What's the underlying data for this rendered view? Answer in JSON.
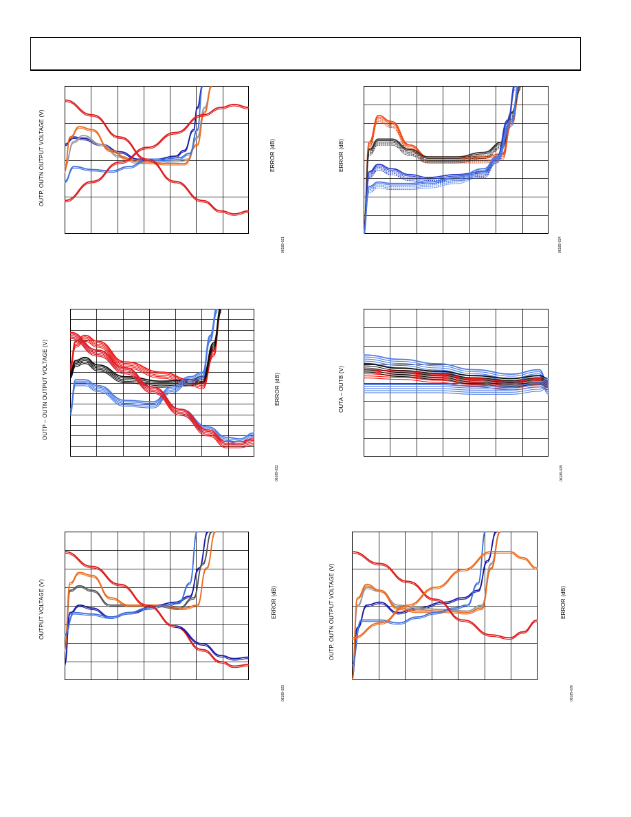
{
  "header": {
    "title": ""
  },
  "chart_data": [
    {
      "id": "021",
      "type": "line",
      "ylabel_left": "OUTP, OUTN OUTPUT VOLTAGE (V)",
      "ylabel_right": "ERROR (dB)",
      "figure_code": "06189-021",
      "grid": true,
      "grid_cols": 7,
      "grid_rows": 4,
      "series": [
        {
          "color": "#1a1aa6",
          "x": [
            0,
            0.05,
            0.1,
            0.2,
            0.3,
            0.4,
            0.5,
            0.6,
            0.65,
            0.7,
            0.72,
            0.75
          ],
          "y": [
            0.6,
            0.65,
            0.64,
            0.6,
            0.55,
            0.5,
            0.5,
            0.52,
            0.56,
            0.7,
            0.85,
            1.0
          ]
        },
        {
          "color": "#9a9a9a",
          "x": [
            0,
            0.05,
            0.1,
            0.2,
            0.3,
            0.4,
            0.5,
            0.6,
            0.67,
            0.72,
            0.76,
            0.8
          ],
          "y": [
            0.45,
            0.62,
            0.66,
            0.6,
            0.52,
            0.48,
            0.48,
            0.49,
            0.5,
            0.65,
            0.85,
            1.0
          ]
        },
        {
          "color": "#ee6a1c",
          "x": [
            0,
            0.03,
            0.08,
            0.15,
            0.25,
            0.35,
            0.45,
            0.55,
            0.65,
            0.72,
            0.76,
            0.8
          ],
          "y": [
            0.42,
            0.65,
            0.72,
            0.7,
            0.56,
            0.5,
            0.48,
            0.47,
            0.47,
            0.6,
            0.82,
            1.0
          ]
        },
        {
          "color": "#3d72dc",
          "x": [
            0,
            0.05,
            0.15,
            0.25,
            0.35,
            0.45,
            0.55,
            0.62,
            0.68,
            0.72,
            0.75
          ],
          "y": [
            0.35,
            0.45,
            0.43,
            0.42,
            0.45,
            0.5,
            0.5,
            0.51,
            0.54,
            0.7,
            1.0
          ]
        },
        {
          "color": "#dd1a1a",
          "x": [
            0,
            0.15,
            0.3,
            0.45,
            0.6,
            0.75,
            0.85,
            0.92,
            1.0
          ],
          "y": [
            0.9,
            0.8,
            0.65,
            0.5,
            0.35,
            0.22,
            0.15,
            0.13,
            0.15
          ]
        },
        {
          "color": "#dd1a1a",
          "x": [
            0,
            0.15,
            0.3,
            0.45,
            0.6,
            0.75,
            0.85,
            0.92,
            1.0
          ],
          "y": [
            0.22,
            0.35,
            0.48,
            0.58,
            0.68,
            0.8,
            0.85,
            0.87,
            0.85
          ]
        }
      ]
    },
    {
      "id": "024",
      "type": "line",
      "ylabel_left": "",
      "ylabel_right": "ERROR (dB)",
      "figure_code": "06189-024",
      "grid": true,
      "grid_cols": 7,
      "grid_rows": 8,
      "series": [
        {
          "color": "#ee4a14",
          "x": [
            0,
            0.03,
            0.08,
            0.15,
            0.25,
            0.35,
            0.5,
            0.65,
            0.75,
            0.8,
            0.85
          ],
          "y": [
            0.0,
            0.6,
            0.78,
            0.74,
            0.58,
            0.5,
            0.5,
            0.5,
            0.52,
            0.75,
            1.0
          ]
        },
        {
          "color": "#333333",
          "x": [
            0,
            0.03,
            0.08,
            0.15,
            0.25,
            0.35,
            0.5,
            0.65,
            0.75,
            0.8,
            0.85
          ],
          "y": [
            0.0,
            0.55,
            0.62,
            0.62,
            0.55,
            0.5,
            0.5,
            0.53,
            0.6,
            0.8,
            1.0
          ]
        },
        {
          "color": "#2a3ec8",
          "x": [
            0,
            0.03,
            0.08,
            0.15,
            0.25,
            0.35,
            0.5,
            0.65,
            0.72,
            0.78,
            0.82
          ],
          "y": [
            0.0,
            0.4,
            0.45,
            0.42,
            0.38,
            0.36,
            0.38,
            0.4,
            0.5,
            0.75,
            1.0
          ]
        },
        {
          "color": "#4a7ae4",
          "x": [
            0,
            0.03,
            0.08,
            0.15,
            0.25,
            0.35,
            0.5,
            0.65,
            0.72,
            0.8,
            0.84
          ],
          "y": [
            0.0,
            0.3,
            0.33,
            0.32,
            0.32,
            0.33,
            0.36,
            0.42,
            0.5,
            0.75,
            1.0
          ]
        }
      ]
    },
    {
      "id": "022",
      "type": "line",
      "ylabel_left": "OUTP – OUTN OUTPUT VOLTAGE (V)",
      "ylabel_right": "ERROR (dB)",
      "figure_code": "06189-022",
      "grid": true,
      "grid_cols": 7,
      "grid_rows": 14,
      "series": [
        {
          "color": "#ee1a1a",
          "x": [
            0,
            0.03,
            0.08,
            0.15,
            0.3,
            0.5,
            0.65,
            0.72,
            0.78,
            0.82
          ],
          "y": [
            0.6,
            0.76,
            0.8,
            0.76,
            0.62,
            0.55,
            0.5,
            0.48,
            0.7,
            1.0
          ]
        },
        {
          "color": "#111111",
          "x": [
            0,
            0.03,
            0.08,
            0.15,
            0.3,
            0.5,
            0.65,
            0.72,
            0.78,
            0.82
          ],
          "y": [
            0.55,
            0.63,
            0.65,
            0.6,
            0.52,
            0.49,
            0.5,
            0.52,
            0.75,
            1.0
          ]
        },
        {
          "color": "#4a7ae4",
          "x": [
            0,
            0.03,
            0.08,
            0.15,
            0.3,
            0.45,
            0.55,
            0.65,
            0.72,
            0.76,
            0.8
          ],
          "y": [
            0.3,
            0.5,
            0.5,
            0.46,
            0.36,
            0.35,
            0.45,
            0.52,
            0.55,
            0.8,
            1.0
          ]
        },
        {
          "color": "#4a7ae4",
          "x": [
            0,
            0.15,
            0.3,
            0.45,
            0.6,
            0.75,
            0.85,
            0.92,
            1.0
          ],
          "y": [
            0.82,
            0.7,
            0.58,
            0.45,
            0.3,
            0.18,
            0.11,
            0.1,
            0.14
          ]
        },
        {
          "color": "#ee1a1a",
          "x": [
            0,
            0.15,
            0.3,
            0.45,
            0.6,
            0.75,
            0.85,
            0.92,
            1.0
          ],
          "y": [
            0.82,
            0.7,
            0.58,
            0.45,
            0.3,
            0.16,
            0.08,
            0.08,
            0.1
          ]
        }
      ]
    },
    {
      "id": "025",
      "type": "line",
      "ylabel_left": "OUTA – OUTB (V)",
      "ylabel_right": "",
      "figure_code": "06189-025",
      "grid": true,
      "grid_cols": 7,
      "grid_rows": 8,
      "series": [
        {
          "color": "#4a7ae4",
          "x": [
            0,
            0.2,
            0.4,
            0.6,
            0.8,
            0.95,
            1.0
          ],
          "y": [
            0.66,
            0.63,
            0.6,
            0.56,
            0.53,
            0.56,
            0.45
          ]
        },
        {
          "color": "#ee1a1a",
          "x": [
            0,
            0.2,
            0.4,
            0.6,
            0.8,
            0.95,
            1.0
          ],
          "y": [
            0.56,
            0.55,
            0.53,
            0.5,
            0.48,
            0.5,
            0.48
          ]
        },
        {
          "color": "#111111",
          "x": [
            0,
            0.2,
            0.4,
            0.6,
            0.8,
            0.95,
            1.0
          ],
          "y": [
            0.6,
            0.57,
            0.55,
            0.52,
            0.5,
            0.52,
            0.5
          ]
        },
        {
          "color": "#4a7ae4",
          "x": [
            0,
            0.2,
            0.4,
            0.6,
            0.8,
            0.95,
            1.0
          ],
          "y": [
            0.46,
            0.46,
            0.46,
            0.45,
            0.45,
            0.47,
            0.5
          ]
        }
      ]
    },
    {
      "id": "023",
      "type": "line",
      "ylabel_left": "OUTPUT VOLTAGE (V)",
      "ylabel_right": "ERROR (dB)",
      "figure_code": "06189-023",
      "grid": true,
      "grid_cols": 7,
      "grid_rows": 8,
      "series": [
        {
          "color": "#1a1aa6",
          "x": [
            0,
            0.03,
            0.08,
            0.15,
            0.25,
            0.35,
            0.5,
            0.6,
            0.68,
            0.73,
            0.78
          ],
          "y": [
            0.1,
            0.45,
            0.5,
            0.48,
            0.42,
            0.45,
            0.5,
            0.52,
            0.56,
            0.75,
            1.0
          ]
        },
        {
          "color": "#555555",
          "x": [
            0,
            0.03,
            0.08,
            0.15,
            0.25,
            0.35,
            0.5,
            0.62,
            0.7,
            0.75,
            0.8
          ],
          "y": [
            0.2,
            0.6,
            0.63,
            0.6,
            0.5,
            0.5,
            0.5,
            0.48,
            0.55,
            0.78,
            1.0
          ]
        },
        {
          "color": "#ee6a1c",
          "x": [
            0,
            0.03,
            0.08,
            0.15,
            0.25,
            0.35,
            0.5,
            0.65,
            0.72,
            0.77,
            0.82
          ],
          "y": [
            0.2,
            0.65,
            0.72,
            0.7,
            0.55,
            0.5,
            0.5,
            0.48,
            0.5,
            0.75,
            1.0
          ]
        },
        {
          "color": "#3d72dc",
          "x": [
            0,
            0.05,
            0.15,
            0.25,
            0.35,
            0.45,
            0.55,
            0.62,
            0.68,
            0.72
          ],
          "y": [
            0.3,
            0.45,
            0.44,
            0.42,
            0.45,
            0.48,
            0.5,
            0.52,
            0.65,
            1.0
          ]
        },
        {
          "color": "#dd1a1a",
          "x": [
            0,
            0.15,
            0.3,
            0.45,
            0.6,
            0.75,
            0.85,
            0.92,
            1.0
          ],
          "y": [
            0.86,
            0.76,
            0.64,
            0.5,
            0.36,
            0.2,
            0.12,
            0.09,
            0.1
          ]
        },
        {
          "color": "#1a1aa6",
          "x": [
            0.6,
            0.75,
            0.85,
            0.92,
            1.0
          ],
          "y": [
            0.36,
            0.24,
            0.16,
            0.14,
            0.15
          ]
        }
      ]
    },
    {
      "id": "026",
      "type": "line",
      "ylabel_left": "OUTP, OUTN OUTPUT VOLTAGE (V)",
      "ylabel_right": "ERROR (dB)",
      "figure_code": "06189-026",
      "grid": true,
      "grid_cols": 7,
      "grid_rows": 4,
      "series": [
        {
          "color": "#1a1aa6",
          "x": [
            0,
            0.03,
            0.08,
            0.15,
            0.25,
            0.35,
            0.5,
            0.6,
            0.68,
            0.73,
            0.78
          ],
          "y": [
            0.0,
            0.35,
            0.5,
            0.52,
            0.45,
            0.48,
            0.52,
            0.55,
            0.6,
            0.8,
            1.0
          ]
        },
        {
          "color": "#999999",
          "x": [
            0,
            0.03,
            0.08,
            0.15,
            0.25,
            0.35,
            0.5,
            0.62,
            0.7,
            0.75,
            0.8
          ],
          "y": [
            0.0,
            0.5,
            0.62,
            0.6,
            0.5,
            0.48,
            0.47,
            0.46,
            0.5,
            0.78,
            1.0
          ]
        },
        {
          "color": "#ee6a1c",
          "x": [
            0,
            0.03,
            0.08,
            0.15,
            0.25,
            0.35,
            0.5,
            0.62,
            0.7,
            0.75,
            0.8
          ],
          "y": [
            0.0,
            0.55,
            0.64,
            0.6,
            0.48,
            0.46,
            0.46,
            0.45,
            0.48,
            0.75,
            1.0
          ]
        },
        {
          "color": "#3d72dc",
          "x": [
            0,
            0.05,
            0.15,
            0.25,
            0.35,
            0.45,
            0.55,
            0.62,
            0.68,
            0.72
          ],
          "y": [
            0.1,
            0.4,
            0.4,
            0.38,
            0.42,
            0.45,
            0.48,
            0.5,
            0.65,
            1.0
          ]
        },
        {
          "color": "#dd1a1a",
          "x": [
            0,
            0.15,
            0.3,
            0.45,
            0.6,
            0.75,
            0.85,
            0.92,
            1.0
          ],
          "y": [
            0.86,
            0.78,
            0.66,
            0.54,
            0.4,
            0.3,
            0.28,
            0.32,
            0.4
          ]
        },
        {
          "color": "#ee6a1c",
          "x": [
            0,
            0.15,
            0.3,
            0.45,
            0.6,
            0.75,
            0.85,
            0.92,
            1.0
          ],
          "y": [
            0.28,
            0.38,
            0.5,
            0.62,
            0.74,
            0.86,
            0.86,
            0.82,
            0.75
          ]
        }
      ]
    }
  ]
}
